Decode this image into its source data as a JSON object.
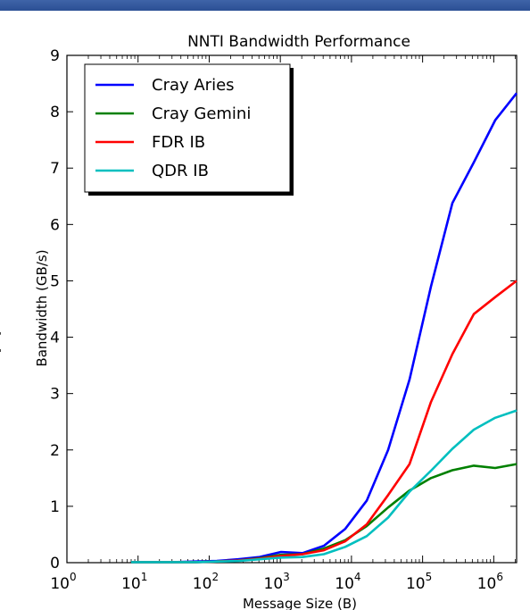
{
  "background_fragment": "t",
  "colors": {
    "top_bar": "#2f5597",
    "cray_aries": "#0000ff",
    "cray_gemini": "#008000",
    "fdr_ib": "#ff0000",
    "qdr_ib": "#00bfbf"
  },
  "chart_data": {
    "type": "line",
    "title": "NNTI Bandwidth Performance",
    "xlabel": "Message Size (B)",
    "ylabel": "Bandwidth (GB/s)",
    "xscale": "log",
    "xlim": [
      1,
      2097152
    ],
    "ylim": [
      0,
      9
    ],
    "x_ticks": [
      {
        "value": 1,
        "base": "10",
        "exp": "0"
      },
      {
        "value": 10,
        "base": "10",
        "exp": "1"
      },
      {
        "value": 100,
        "base": "10",
        "exp": "2"
      },
      {
        "value": 1000,
        "base": "10",
        "exp": "3"
      },
      {
        "value": 10000,
        "base": "10",
        "exp": "4"
      },
      {
        "value": 100000,
        "base": "10",
        "exp": "5"
      },
      {
        "value": 1000000,
        "base": "10",
        "exp": "6"
      }
    ],
    "y_ticks": [
      "0",
      "1",
      "2",
      "3",
      "4",
      "5",
      "6",
      "7",
      "8",
      "9"
    ],
    "grid": false,
    "legend_position": "top-left",
    "x": [
      8,
      16,
      32,
      64,
      128,
      256,
      512,
      1024,
      2048,
      4096,
      8192,
      16384,
      32768,
      65536,
      131072,
      262144,
      524288,
      1048576,
      2097152
    ],
    "series": [
      {
        "name": "Cray Aries",
        "color": "#0000ff",
        "values": [
          0.01,
          0.01,
          0.01,
          0.02,
          0.03,
          0.06,
          0.1,
          0.19,
          0.17,
          0.3,
          0.6,
          1.1,
          2.0,
          3.25,
          4.9,
          6.38,
          7.1,
          7.85,
          8.33
        ]
      },
      {
        "name": "Cray Gemini",
        "color": "#008000",
        "values": [
          0.01,
          0.01,
          0.01,
          0.01,
          0.02,
          0.04,
          0.08,
          0.14,
          0.15,
          0.25,
          0.4,
          0.65,
          0.98,
          1.28,
          1.5,
          1.64,
          1.72,
          1.68,
          1.75
        ]
      },
      {
        "name": "FDR IB",
        "color": "#ff0000",
        "values": [
          0.01,
          0.01,
          0.01,
          0.01,
          0.02,
          0.04,
          0.07,
          0.12,
          0.15,
          0.22,
          0.38,
          0.68,
          1.2,
          1.75,
          2.85,
          3.7,
          4.41,
          4.71,
          5.0
        ]
      },
      {
        "name": "QDR IB",
        "color": "#00bfbf",
        "values": [
          0.01,
          0.01,
          0.01,
          0.01,
          0.02,
          0.03,
          0.06,
          0.09,
          0.1,
          0.15,
          0.28,
          0.47,
          0.8,
          1.26,
          1.63,
          2.02,
          2.36,
          2.57,
          2.7
        ]
      }
    ]
  }
}
